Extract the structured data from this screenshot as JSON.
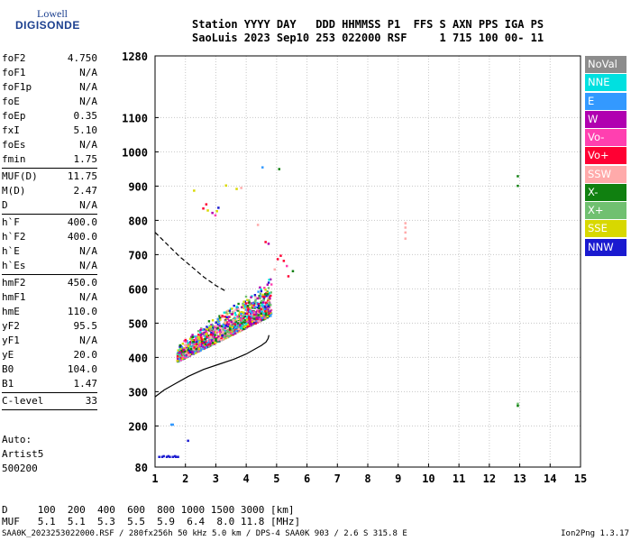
{
  "logo": {
    "line1": "Lowell",
    "line2": "DIGISONDE"
  },
  "header": {
    "line1": "Station YYYY DAY   DDD HHMMSS P1  FFS S AXN PPS IGA PS",
    "line2": "SaoLuis 2023 Sep10 253 022000 RSF     1 715 100 00- 11"
  },
  "params": {
    "group1": [
      {
        "k": "foF2",
        "v": "4.750"
      },
      {
        "k": "foF1",
        "v": "N/A"
      },
      {
        "k": "foF1p",
        "v": "N/A"
      },
      {
        "k": "foE",
        "v": "N/A"
      },
      {
        "k": "foEp",
        "v": "0.35"
      },
      {
        "k": "fxI",
        "v": "5.10"
      },
      {
        "k": "foEs",
        "v": "N/A"
      },
      {
        "k": "fmin",
        "v": "1.75"
      }
    ],
    "group2": [
      {
        "k": "MUF(D)",
        "v": "11.75"
      },
      {
        "k": "M(D)",
        "v": "2.47"
      },
      {
        "k": "D",
        "v": "N/A"
      }
    ],
    "group3": [
      {
        "k": "h`F",
        "v": "400.0"
      },
      {
        "k": "h`F2",
        "v": "400.0"
      },
      {
        "k": "h`E",
        "v": "N/A"
      },
      {
        "k": "h`Es",
        "v": "N/A"
      }
    ],
    "group4": [
      {
        "k": "hmF2",
        "v": "450.0"
      },
      {
        "k": "hmF1",
        "v": "N/A"
      },
      {
        "k": "hmE",
        "v": "110.0"
      },
      {
        "k": "yF2",
        "v": "95.5"
      },
      {
        "k": "yF1",
        "v": "N/A"
      },
      {
        "k": "yE",
        "v": "20.0"
      },
      {
        "k": "B0",
        "v": "104.0"
      },
      {
        "k": "B1",
        "v": "1.47"
      }
    ],
    "group5": [
      {
        "k": "C-level",
        "v": "33"
      }
    ]
  },
  "auto": {
    "line1": "Auto:",
    "line2": "Artist5",
    "line3": "500200"
  },
  "legend": [
    {
      "label": "NoVal",
      "color": "#8c8c8c"
    },
    {
      "label": "NNE",
      "color": "#00e0e0"
    },
    {
      "label": "E",
      "color": "#3399ff"
    },
    {
      "label": "W",
      "color": "#b000b0"
    },
    {
      "label": "Vo-",
      "color": "#ff40b0"
    },
    {
      "label": "Vo+",
      "color": "#ff0033"
    },
    {
      "label": "SSW",
      "color": "#ffaaaa"
    },
    {
      "label": "X-",
      "color": "#108010"
    },
    {
      "label": "X+",
      "color": "#70c070"
    },
    {
      "label": "SSE",
      "color": "#d8d800"
    },
    {
      "label": "NNW",
      "color": "#1a1ad0"
    }
  ],
  "chart_data": {
    "type": "scatter",
    "xlim": [
      1,
      15
    ],
    "ylim": [
      80,
      1280
    ],
    "x_ticks": [
      "1",
      "2",
      "3",
      "4",
      "5",
      "6",
      "7",
      "8",
      "9",
      "10",
      "11",
      "12",
      "13",
      "14",
      "15"
    ],
    "y_ticks": [
      {
        "v": 80,
        "label": "80"
      },
      {
        "v": 200,
        "label": "200"
      },
      {
        "v": 300,
        "label": "300"
      },
      {
        "v": 400,
        "label": "400"
      },
      {
        "v": 500,
        "label": "500"
      },
      {
        "v": 600,
        "label": "600"
      },
      {
        "v": 700,
        "label": "700"
      },
      {
        "v": 800,
        "label": "800"
      },
      {
        "v": 900,
        "label": "900"
      },
      {
        "v": 1000,
        "label": "1000"
      },
      {
        "v": 1100,
        "label": "1100"
      },
      {
        "v": 1280,
        "label": "1280"
      }
    ],
    "grid": true,
    "true_height_profile": {
      "x": [
        1.0,
        1.3,
        1.7,
        2.1,
        2.6,
        3.1,
        3.6,
        4.0,
        4.3,
        4.5,
        4.65,
        4.72,
        4.75
      ],
      "y": [
        285,
        305,
        325,
        345,
        365,
        380,
        395,
        410,
        425,
        435,
        445,
        455,
        465
      ]
    },
    "dashed_profile": {
      "x": [
        1.0,
        1.4,
        1.8,
        2.2,
        2.6,
        3.0,
        3.3
      ],
      "y": [
        765,
        730,
        695,
        665,
        635,
        610,
        595
      ]
    },
    "echo_cluster": {
      "x_range": [
        1.7,
        4.8
      ],
      "y_base_start": 390,
      "y_base_end": 525,
      "y_top_start": 440,
      "y_top_end": 640,
      "colors": [
        "#b000b0",
        "#ff40b0",
        "#ff0033",
        "#d8d800",
        "#1a1ad0",
        "#3399ff",
        "#108010",
        "#70c070",
        "#00e0e0",
        "#ffaaaa"
      ]
    },
    "scattered_points": [
      {
        "x": 2.25,
        "y": 890,
        "c": "#d8d800"
      },
      {
        "x": 2.55,
        "y": 838,
        "c": "#ff0033"
      },
      {
        "x": 2.7,
        "y": 832,
        "c": "#d8d800"
      },
      {
        "x": 2.85,
        "y": 825,
        "c": "#b000b0"
      },
      {
        "x": 2.95,
        "y": 818,
        "c": "#ff40b0"
      },
      {
        "x": 3.05,
        "y": 840,
        "c": "#1a1ad0"
      },
      {
        "x": 2.65,
        "y": 850,
        "c": "#ff0033"
      },
      {
        "x": 3.0,
        "y": 830,
        "c": "#d8d800"
      },
      {
        "x": 3.3,
        "y": 905,
        "c": "#d8d800"
      },
      {
        "x": 3.65,
        "y": 895,
        "c": "#d8d800"
      },
      {
        "x": 3.8,
        "y": 898,
        "c": "#ffaaaa"
      },
      {
        "x": 4.5,
        "y": 958,
        "c": "#3399ff"
      },
      {
        "x": 5.05,
        "y": 953,
        "c": "#108010"
      },
      {
        "x": 4.35,
        "y": 790,
        "c": "#ffaaaa"
      },
      {
        "x": 4.6,
        "y": 740,
        "c": "#ff0033"
      },
      {
        "x": 4.7,
        "y": 735,
        "c": "#b000b0"
      },
      {
        "x": 5.1,
        "y": 700,
        "c": "#ff0033"
      },
      {
        "x": 5.2,
        "y": 685,
        "c": "#ff0033"
      },
      {
        "x": 5.3,
        "y": 670,
        "c": "#ff40b0"
      },
      {
        "x": 5.5,
        "y": 655,
        "c": "#108010"
      },
      {
        "x": 5.35,
        "y": 640,
        "c": "#ff0033"
      },
      {
        "x": 4.9,
        "y": 660,
        "c": "#ffaaaa"
      },
      {
        "x": 5.0,
        "y": 690,
        "c": "#ff0033"
      },
      {
        "x": 9.2,
        "y": 795,
        "c": "#ffaaaa"
      },
      {
        "x": 9.2,
        "y": 782,
        "c": "#ffaaaa"
      },
      {
        "x": 9.2,
        "y": 768,
        "c": "#ffaaaa"
      },
      {
        "x": 9.2,
        "y": 750,
        "c": "#ffaaaa"
      },
      {
        "x": 12.9,
        "y": 932,
        "c": "#108010"
      },
      {
        "x": 12.9,
        "y": 904,
        "c": "#108010"
      },
      {
        "x": 12.9,
        "y": 268,
        "c": "#70c070"
      },
      {
        "x": 12.9,
        "y": 262,
        "c": "#108010"
      },
      {
        "x": 1.5,
        "y": 207,
        "c": "#3399ff"
      },
      {
        "x": 1.55,
        "y": 207,
        "c": "#3399ff"
      },
      {
        "x": 2.05,
        "y": 160,
        "c": "#1a1ad0"
      },
      {
        "x": 1.1,
        "y": 113,
        "c": "#1a1ad0"
      },
      {
        "x": 1.2,
        "y": 113,
        "c": "#1a1ad0"
      },
      {
        "x": 1.35,
        "y": 113,
        "c": "#1a1ad0"
      },
      {
        "x": 1.45,
        "y": 113,
        "c": "#1a1ad0"
      },
      {
        "x": 1.55,
        "y": 113,
        "c": "#1a1ad0"
      },
      {
        "x": 1.65,
        "y": 113,
        "c": "#1a1ad0"
      },
      {
        "x": 1.72,
        "y": 113,
        "c": "#1a1ad0"
      },
      {
        "x": 1.62,
        "y": 115,
        "c": "#1a1ad0"
      },
      {
        "x": 1.4,
        "y": 115,
        "c": "#1a1ad0"
      },
      {
        "x": 1.25,
        "y": 115,
        "c": "#1a1ad0"
      }
    ]
  },
  "dmuf": {
    "d_line": "D     100  200  400  600  800 1000 1500 3000 [km]",
    "muf_line": "MUF   5.1  5.1  5.3  5.5  5.9  6.4  8.0 11.8 [MHz]"
  },
  "footer": {
    "left": "SAA0K_2023253022000.RSF / 280fx256h 50 kHz 5.0 km / DPS-4 SAA0K 903 / 2.6 S 315.8 E",
    "right": "Ion2Png 1.3.17"
  }
}
